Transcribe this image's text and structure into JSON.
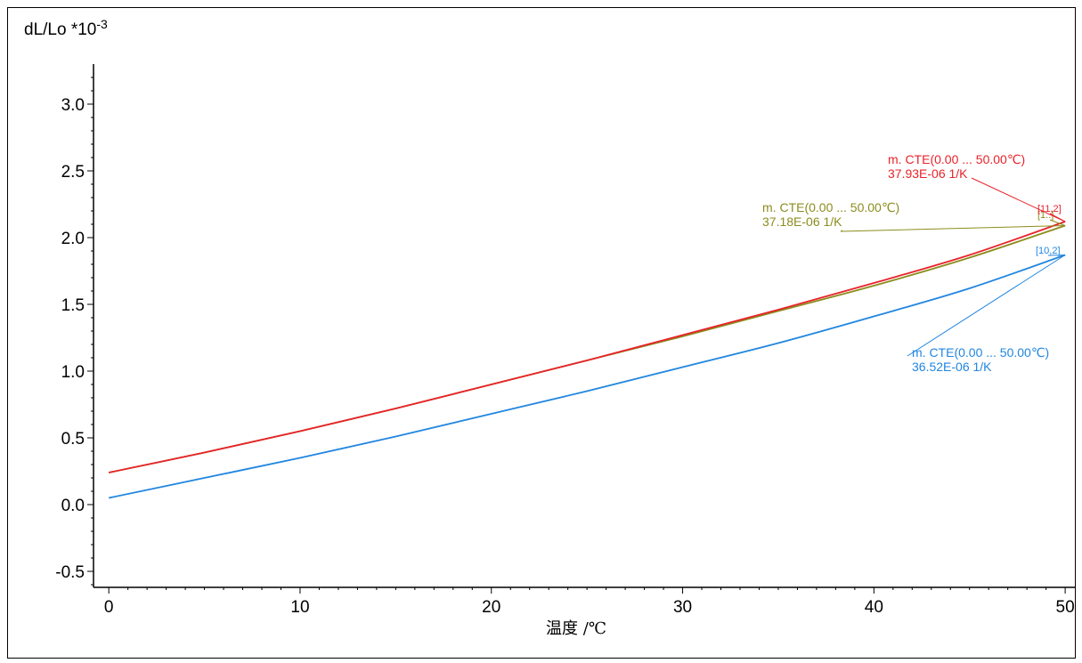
{
  "chart_data": {
    "type": "line",
    "ylabel": "dL/Lo *10",
    "ylabel_exp": "-3",
    "xlabel": "温度 /℃",
    "xlim": [
      -0.8,
      50.6
    ],
    "ylim": [
      -0.62,
      3.3
    ],
    "xticks": [
      "0",
      "10",
      "20",
      "30",
      "40",
      "50"
    ],
    "yticks": [
      "-0.5",
      "0.0",
      "0.5",
      "1.0",
      "1.5",
      "2.0",
      "2.5",
      "3.0"
    ],
    "grid": false,
    "series": [
      {
        "color": "#2186e0",
        "x": [
          0,
          5,
          10,
          15,
          20,
          25,
          30,
          35,
          40,
          45,
          50
        ],
        "y": [
          0.05,
          0.2,
          0.35,
          0.51,
          0.68,
          0.85,
          1.03,
          1.21,
          1.41,
          1.62,
          1.87
        ],
        "marker": "[10,2]",
        "annotation": {
          "line1": "m. CTE(0.00 ... 50.00℃)",
          "line2": "36.52E-06 1/K"
        }
      },
      {
        "color": "#8c8c1e",
        "x": [
          0,
          5,
          10,
          15,
          20,
          25,
          30,
          35,
          40,
          45,
          50
        ],
        "y": [
          0.24,
          0.39,
          0.55,
          0.72,
          0.9,
          1.08,
          1.26,
          1.45,
          1.64,
          1.85,
          2.09
        ],
        "marker": "[1..]",
        "annotation": {
          "line1": "m. CTE(0.00 ... 50.00℃)",
          "line2": "37.18E-06 1/K"
        }
      },
      {
        "color": "#e8232a",
        "x": [
          0,
          5,
          10,
          15,
          20,
          25,
          30,
          35,
          40,
          45,
          50
        ],
        "y": [
          0.24,
          0.39,
          0.55,
          0.72,
          0.9,
          1.08,
          1.27,
          1.46,
          1.66,
          1.87,
          2.12
        ],
        "marker": "[11,2]",
        "annotation": {
          "line1": "m. CTE(0.00 ... 50.00℃)",
          "line2": "37.93E-06 1/K"
        }
      }
    ]
  }
}
